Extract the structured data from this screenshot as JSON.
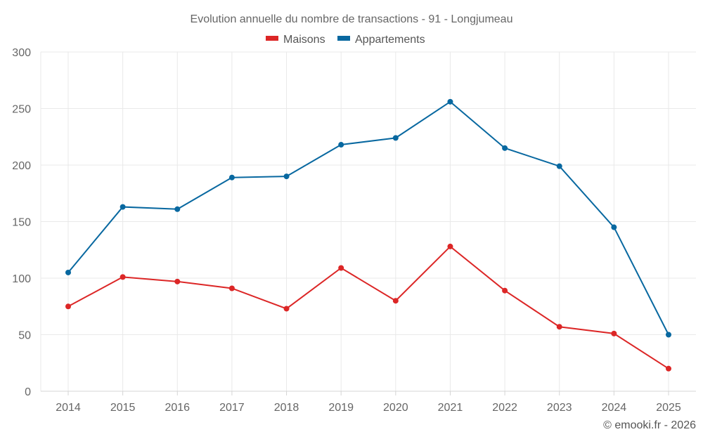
{
  "chart_data": {
    "type": "line",
    "title": "Evolution annuelle du nombre de transactions - 91 - Longjumeau",
    "xlabel": "",
    "ylabel": "",
    "x": [
      "2014",
      "2015",
      "2016",
      "2017",
      "2018",
      "2019",
      "2020",
      "2021",
      "2022",
      "2023",
      "2024",
      "2025"
    ],
    "ylim": [
      0,
      300
    ],
    "yticks": [
      0,
      50,
      100,
      150,
      200,
      250,
      300
    ],
    "grid": true,
    "legend_position": "top-center",
    "series": [
      {
        "name": "Maisons",
        "color": "#dc2626",
        "values": [
          75,
          101,
          97,
          91,
          73,
          109,
          80,
          128,
          89,
          57,
          51,
          20
        ]
      },
      {
        "name": "Appartements",
        "color": "#0868a0",
        "values": [
          105,
          163,
          161,
          189,
          190,
          218,
          224,
          256,
          215,
          199,
          145,
          50
        ]
      }
    ],
    "credit": "© emooki.fr - 2026"
  }
}
